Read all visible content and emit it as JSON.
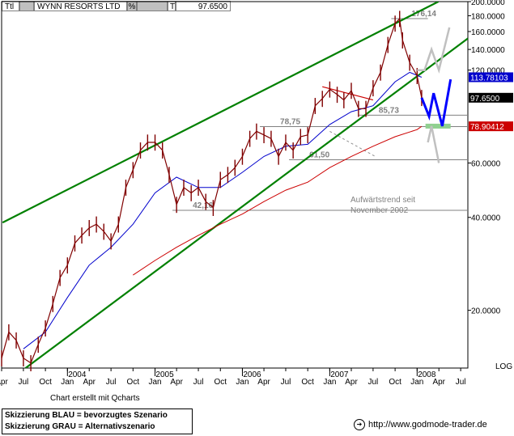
{
  "header": {
    "type_code": "Ttl",
    "symbol": "WYNN RESORTS LTD",
    "pct_label": "%",
    "t_label": "T",
    "last_value": "97.6500"
  },
  "footer": {
    "credit": "Chart erstellt mit Qcharts",
    "legend_blue": "Skizzierung BLAU = bevorzugtes Szenario",
    "legend_gray": "Skizzierung GRAU = Alternativszenario",
    "website": "http://www.godmode-trader.de"
  },
  "colors": {
    "price_bars": "#800000",
    "ma_blue": "#0000cc",
    "ma_red": "#cc0000",
    "channel_green": "#008000",
    "scenario_blue": "#0000ff",
    "scenario_gray": "#c0c0c0",
    "support_green": "#90d090",
    "level_gray": "#808080",
    "label_current_bg": "#000000",
    "label_ma_blue_bg": "#0000cc",
    "label_ma_red_bg": "#cc0000"
  },
  "chart_data": {
    "type": "candlestick",
    "scale": "log",
    "ylim": [
      13,
      200
    ],
    "x_start": "2003-04-01",
    "x_end": "2008-07-31",
    "y_ticks": [
      {
        "value": 200,
        "label": "200.0000"
      },
      {
        "value": 180,
        "label": "180.0000"
      },
      {
        "value": 160,
        "label": "160.0000"
      },
      {
        "value": 140,
        "label": "140.0000"
      },
      {
        "value": 120,
        "label": "120.0000"
      },
      {
        "value": 60,
        "label": "60.0000"
      },
      {
        "value": 40,
        "label": "40.0000"
      },
      {
        "value": 20,
        "label": "20.0000"
      }
    ],
    "y_axis_label": "LOG",
    "x_ticks": [
      {
        "date": "2003-04-01",
        "label": "Apr"
      },
      {
        "date": "2003-07-01",
        "label": "Jul"
      },
      {
        "date": "2003-10-01",
        "label": "Oct"
      },
      {
        "date": "2004-01-01",
        "label": "Jan"
      },
      {
        "date": "2004-04-01",
        "label": "Apr"
      },
      {
        "date": "2004-07-01",
        "label": "Jul"
      },
      {
        "date": "2004-10-01",
        "label": "Oct"
      },
      {
        "date": "2005-01-01",
        "label": "Jan"
      },
      {
        "date": "2005-04-01",
        "label": "Apr"
      },
      {
        "date": "2005-07-01",
        "label": "Jul"
      },
      {
        "date": "2005-10-01",
        "label": "Oct"
      },
      {
        "date": "2006-01-01",
        "label": "Jan"
      },
      {
        "date": "2006-04-01",
        "label": "Apr"
      },
      {
        "date": "2006-07-01",
        "label": "Jul"
      },
      {
        "date": "2006-10-01",
        "label": "Oct"
      },
      {
        "date": "2007-01-01",
        "label": "Jan"
      },
      {
        "date": "2007-04-01",
        "label": "Apr"
      },
      {
        "date": "2007-07-01",
        "label": "Jul"
      },
      {
        "date": "2007-10-01",
        "label": "Oct"
      },
      {
        "date": "2008-01-01",
        "label": "Jan"
      },
      {
        "date": "2008-04-01",
        "label": "Apr"
      },
      {
        "date": "2008-07-01",
        "label": "Jul"
      }
    ],
    "year_labels": [
      {
        "date": "2004-01-01",
        "label": "2004"
      },
      {
        "date": "2005-01-01",
        "label": "2005"
      },
      {
        "date": "2006-01-01",
        "label": "2006"
      },
      {
        "date": "2007-01-01",
        "label": "2007"
      },
      {
        "date": "2008-01-01",
        "label": "2008"
      }
    ],
    "price": [
      [
        "2003-04-01",
        14.0
      ],
      [
        "2003-05-01",
        17.0
      ],
      [
        "2003-06-01",
        16.0
      ],
      [
        "2003-07-01",
        14.0
      ],
      [
        "2003-08-01",
        13.5
      ],
      [
        "2003-09-01",
        15.5
      ],
      [
        "2003-10-01",
        17.5
      ],
      [
        "2003-11-01",
        21.0
      ],
      [
        "2003-12-01",
        25.5
      ],
      [
        "2004-01-01",
        28.0
      ],
      [
        "2004-02-01",
        33.0
      ],
      [
        "2004-03-01",
        35.0
      ],
      [
        "2004-04-01",
        37.0
      ],
      [
        "2004-05-01",
        38.0
      ],
      [
        "2004-06-01",
        36.0
      ],
      [
        "2004-07-01",
        33.5
      ],
      [
        "2004-08-01",
        38.0
      ],
      [
        "2004-09-01",
        50.0
      ],
      [
        "2004-10-01",
        57.0
      ],
      [
        "2004-11-01",
        66.0
      ],
      [
        "2004-12-01",
        70.0
      ],
      [
        "2005-01-01",
        70.0
      ],
      [
        "2005-02-01",
        66.0
      ],
      [
        "2005-03-01",
        55.0
      ],
      [
        "2005-04-01",
        44.0
      ],
      [
        "2005-05-01",
        50.0
      ],
      [
        "2005-06-01",
        48.0
      ],
      [
        "2005-07-01",
        50.0
      ],
      [
        "2005-08-01",
        45.0
      ],
      [
        "2005-09-01",
        43.0
      ],
      [
        "2005-10-01",
        53.0
      ],
      [
        "2005-11-01",
        55.0
      ],
      [
        "2005-12-01",
        58.0
      ],
      [
        "2006-01-01",
        63.0
      ],
      [
        "2006-02-01",
        72.0
      ],
      [
        "2006-03-01",
        76.0
      ],
      [
        "2006-04-01",
        74.0
      ],
      [
        "2006-05-01",
        72.0
      ],
      [
        "2006-06-01",
        63.0
      ],
      [
        "2006-07-01",
        70.0
      ],
      [
        "2006-08-01",
        66.0
      ],
      [
        "2006-09-01",
        73.0
      ],
      [
        "2006-10-01",
        74.0
      ],
      [
        "2006-11-01",
        92.0
      ],
      [
        "2006-12-01",
        97.0
      ],
      [
        "2007-01-01",
        104.0
      ],
      [
        "2007-02-01",
        100.0
      ],
      [
        "2007-03-01",
        96.0
      ],
      [
        "2007-04-01",
        103.0
      ],
      [
        "2007-05-01",
        90.0
      ],
      [
        "2007-06-01",
        90.0
      ],
      [
        "2007-07-01",
        105.0
      ],
      [
        "2007-08-01",
        118.0
      ],
      [
        "2007-09-01",
        145.0
      ],
      [
        "2007-10-01",
        170.0
      ],
      [
        "2007-10-20",
        176.14
      ],
      [
        "2007-11-01",
        150.0
      ],
      [
        "2007-12-01",
        127.0
      ],
      [
        "2008-01-01",
        115.0
      ],
      [
        "2008-01-20",
        97.65
      ]
    ],
    "ma_blue": [
      [
        "2003-07-01",
        15.0
      ],
      [
        "2003-10-01",
        17.0
      ],
      [
        "2004-01-01",
        22.0
      ],
      [
        "2004-04-01",
        28.0
      ],
      [
        "2004-07-01",
        32.0
      ],
      [
        "2004-10-01",
        38.0
      ],
      [
        "2005-01-01",
        48.0
      ],
      [
        "2005-04-01",
        54.0
      ],
      [
        "2005-07-01",
        50.0
      ],
      [
        "2005-10-01",
        50.0
      ],
      [
        "2006-01-01",
        56.0
      ],
      [
        "2006-04-01",
        63.0
      ],
      [
        "2006-07-01",
        68.0
      ],
      [
        "2006-10-01",
        69.0
      ],
      [
        "2007-01-01",
        80.0
      ],
      [
        "2007-04-01",
        88.0
      ],
      [
        "2007-07-01",
        92.0
      ],
      [
        "2007-10-01",
        110.0
      ],
      [
        "2007-12-01",
        118.0
      ],
      [
        "2008-01-20",
        113.78
      ]
    ],
    "ma_red": [
      [
        "2004-10-01",
        26.0
      ],
      [
        "2005-01-01",
        29.0
      ],
      [
        "2005-04-01",
        32.0
      ],
      [
        "2005-07-01",
        35.0
      ],
      [
        "2005-10-01",
        38.0
      ],
      [
        "2006-01-01",
        41.0
      ],
      [
        "2006-04-01",
        45.0
      ],
      [
        "2006-07-01",
        49.0
      ],
      [
        "2006-10-01",
        52.0
      ],
      [
        "2007-01-01",
        58.0
      ],
      [
        "2007-04-01",
        63.0
      ],
      [
        "2007-07-01",
        68.0
      ],
      [
        "2007-10-01",
        73.0
      ],
      [
        "2008-01-01",
        77.0
      ],
      [
        "2008-01-20",
        78.9
      ]
    ],
    "channel_upper": [
      [
        "2003-04-05",
        38.5
      ],
      [
        "2008-03-30",
        200.0
      ]
    ],
    "channel_lower": [
      [
        "2003-07-10",
        13.0
      ],
      [
        "2008-07-31",
        152.0
      ]
    ],
    "resistance_segment": [
      [
        "2006-12-01",
        106.0
      ],
      [
        "2007-07-01",
        96.0
      ]
    ],
    "annotation_dashed": [
      [
        "2007-01-01",
        76.0
      ],
      [
        "2007-07-10",
        63.0
      ]
    ],
    "scenario_blue": [
      [
        "2008-01-20",
        97.65
      ],
      [
        "2008-02-20",
        85.0
      ],
      [
        "2008-03-10",
        101.0
      ],
      [
        "2008-04-15",
        79.0
      ],
      [
        "2008-05-20",
        112.0
      ]
    ],
    "scenario_gray": [
      [
        [
          "2008-01-01",
          120.0
        ],
        [
          "2008-02-01",
          120.0
        ],
        [
          "2008-03-01",
          140.0
        ],
        [
          "2008-04-01",
          120.0
        ],
        [
          "2008-05-15",
          165.0
        ]
      ],
      [
        [
          "2008-02-15",
          70.0
        ],
        [
          "2008-03-01",
          79.0
        ],
        [
          "2008-04-01",
          60.0
        ]
      ]
    ],
    "support_zone": {
      "from": "2008-02-05",
      "to": "2008-05-20",
      "value": 79.0
    },
    "levels": [
      {
        "value": 176.14,
        "label": "176,14",
        "from": "2007-09-15",
        "to": "2008-02-15"
      },
      {
        "value": 85.73,
        "label": "85,73",
        "from": "2007-05-01",
        "to": "2008-07-31"
      },
      {
        "value": 78.75,
        "label": "78,75",
        "from": "2006-03-15",
        "to": "2008-07-31"
      },
      {
        "value": 61.5,
        "label": "61,50",
        "from": "2006-07-15",
        "to": "2008-07-31"
      },
      {
        "value": 42.16,
        "label": "42,16",
        "from": "2005-03-15",
        "to": "2008-07-31"
      }
    ],
    "annotation_text": [
      "Aufwärtstrend seit",
      "November 2002"
    ],
    "value_labels": [
      {
        "value": 113.78103,
        "label": "113.78103",
        "kind": "ma_blue"
      },
      {
        "value": 97.65,
        "label": "97.6500",
        "kind": "current"
      },
      {
        "value": 78.90412,
        "label": "78.90412",
        "kind": "ma_red"
      }
    ]
  }
}
